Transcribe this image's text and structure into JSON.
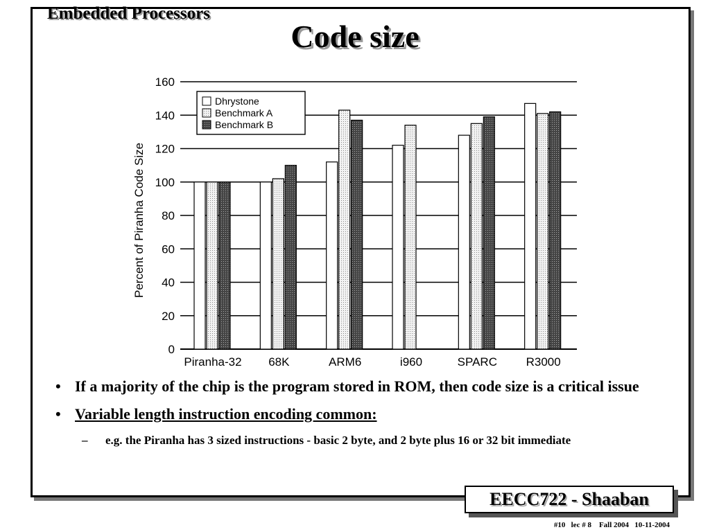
{
  "header": {
    "section": "Embedded Processors",
    "title": "Code size"
  },
  "chart_data": {
    "type": "bar",
    "ylabel": "Percent of Piranha Code Size",
    "xlabel": "",
    "ylim": [
      0,
      160
    ],
    "yticks": [
      0,
      20,
      40,
      60,
      80,
      100,
      120,
      140,
      160
    ],
    "grid": true,
    "legend_position": "top-left",
    "categories": [
      "Piranha-32",
      "68K",
      "ARM6",
      "i960",
      "SPARC",
      "R3000"
    ],
    "series": [
      {
        "name": "Dhrystone",
        "values": [
          100,
          100,
          112,
          122,
          128,
          147
        ],
        "fill": "#ffffff"
      },
      {
        "name": "Benchmark A",
        "values": [
          100,
          102,
          143,
          134,
          135,
          141
        ],
        "fill": "#e2e2e2"
      },
      {
        "name": "Benchmark B",
        "values": [
          100,
          110,
          137,
          null,
          139,
          142
        ],
        "fill": "#555555"
      }
    ]
  },
  "bullets": [
    {
      "text": "If a majority of the chip is the program stored in ROM, then code size is a critical issue",
      "underline": false
    },
    {
      "text": "Variable length instruction encoding common:",
      "underline": true
    }
  ],
  "sub_bullet": {
    "mark": "–",
    "text": "e.g. the Piranha has 3 sized instructions - basic 2 byte, and 2 byte plus 16 or 32 bit immediate"
  },
  "bullet_mark": "•",
  "footer": {
    "course": "EECC722 - Shaaban",
    "info": "#10   lec # 8    Fall 2004   10-11-2004"
  }
}
